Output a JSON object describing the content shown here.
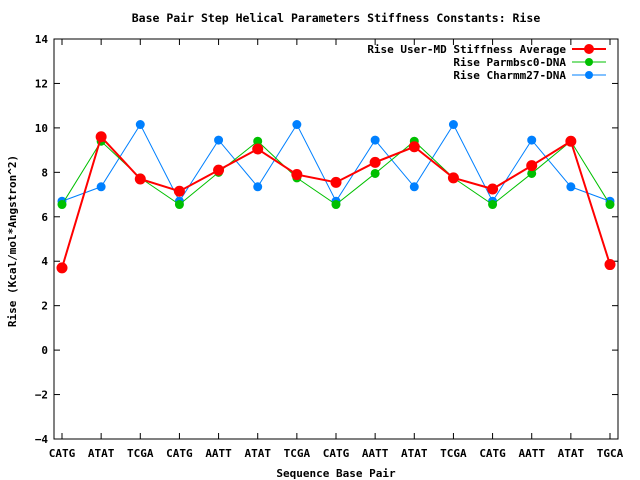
{
  "chart_data": {
    "type": "line",
    "title": "Base Pair Step Helical Parameters Stiffness Constants: Rise",
    "xlabel": "Sequence Base Pair",
    "ylabel": "Rise (Kcal/mol*Angstron^2)",
    "ylim": [
      -4,
      14
    ],
    "yticks": [
      "−4",
      "−2",
      "0",
      "2",
      "4",
      "6",
      "8",
      "10",
      "12",
      "14"
    ],
    "categories": [
      "CATG",
      "ATAT",
      "TCGA",
      "CATG",
      "AATT",
      "ATAT",
      "TCGA",
      "CATG",
      "AATT",
      "ATAT",
      "TCGA",
      "CATG",
      "AATT",
      "ATAT",
      "TGCA"
    ],
    "legend_position": "top-right",
    "series": [
      {
        "name": "Rise User-MD Stiffness Average",
        "color": "#ff0000",
        "values": [
          3.7,
          9.6,
          7.7,
          7.15,
          8.1,
          9.05,
          7.9,
          7.55,
          8.45,
          9.15,
          7.75,
          7.25,
          8.3,
          9.4,
          3.85
        ]
      },
      {
        "name": "Rise Parmbsc0-DNA",
        "color": "#00c000",
        "values": [
          6.55,
          9.4,
          7.75,
          6.55,
          8.0,
          9.4,
          7.75,
          6.55,
          7.95,
          9.4,
          7.75,
          6.55,
          7.95,
          9.4,
          6.55
        ]
      },
      {
        "name": "Rise Charmm27-DNA",
        "color": "#0080ff",
        "values": [
          6.7,
          7.35,
          10.15,
          6.7,
          9.45,
          7.35,
          10.15,
          6.7,
          9.45,
          7.35,
          10.15,
          6.7,
          9.45,
          7.35,
          6.7
        ]
      }
    ]
  }
}
